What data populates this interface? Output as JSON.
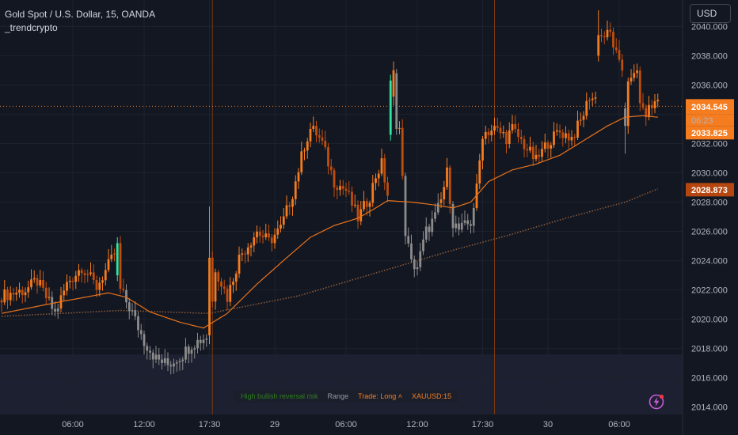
{
  "header": {
    "title": "Gold Spot / U.S. Dollar, 15, OANDA",
    "indicator_name": "_trendcrypto",
    "currency_button": "USD"
  },
  "status_bar": {
    "risk": "High bullish reversal risk",
    "mode": "Range",
    "trade": "Trade: Long ˄",
    "symbol": "XAUUSD:15"
  },
  "price_labels": {
    "last_price": "2034.545",
    "countdown": "06:23",
    "ma_fast": "2033.825",
    "ma_slow": "2028.873"
  },
  "icons": {
    "alert": "lightning-bolt-icon"
  },
  "colors": {
    "background": "#131722",
    "orange": "#f57c1f",
    "dark_orange": "#c04e0c",
    "gray": "#8c8c8c",
    "green": "#2ee6a0",
    "slow_ma": "#8a5a38",
    "text": "#b2b5be",
    "grid": "#1e222d"
  },
  "chart_data": {
    "type": "candlestick",
    "y_ticks": [
      "2040.000",
      "2038.000",
      "2036.000",
      "2034.000",
      "2032.000",
      "2030.000",
      "2028.000",
      "2026.000",
      "2024.000",
      "2022.000",
      "2020.000",
      "2018.000",
      "2016.000",
      "2014.000"
    ],
    "ylim": [
      2013.5,
      2041.8
    ],
    "x_ticks": [
      {
        "label": "06:00",
        "bar": 24
      },
      {
        "label": "12:00",
        "bar": 48
      },
      {
        "label": "17:30",
        "bar": 70
      },
      {
        "label": "29",
        "bar": 92
      },
      {
        "label": "06:00",
        "bar": 116
      },
      {
        "label": "12:00",
        "bar": 140
      },
      {
        "label": "17:30",
        "bar": 162
      },
      {
        "label": "30",
        "bar": 184
      },
      {
        "label": "06:00",
        "bar": 208
      }
    ],
    "session_lines_bar": [
      71,
      166
    ],
    "grid": true,
    "price_line": 2034.545,
    "anchors": [
      [
        0,
        2021.6
      ],
      [
        8,
        2022.0
      ],
      [
        12,
        2022.6
      ],
      [
        18,
        2020.4
      ],
      [
        22,
        2022.4
      ],
      [
        27,
        2023.6
      ],
      [
        32,
        2022.2
      ],
      [
        38,
        2024.4
      ],
      [
        40,
        2022.0
      ],
      [
        44,
        2020.4
      ],
      [
        48,
        2018.5
      ],
      [
        52,
        2017.3
      ],
      [
        56,
        2016.9
      ],
      [
        60,
        2017.4
      ],
      [
        64,
        2018.3
      ],
      [
        70,
        2018.9
      ],
      [
        72,
        2023.5
      ],
      [
        76,
        2021.5
      ],
      [
        80,
        2024.2
      ],
      [
        86,
        2026.0
      ],
      [
        90,
        2025.3
      ],
      [
        94,
        2026.2
      ],
      [
        98,
        2028.6
      ],
      [
        102,
        2031.9
      ],
      [
        104,
        2033.0
      ],
      [
        106,
        2032.7
      ],
      [
        108,
        2032.0
      ],
      [
        112,
        2029.4
      ],
      [
        116,
        2028.8
      ],
      [
        120,
        2026.9
      ],
      [
        124,
        2028.4
      ],
      [
        126,
        2029.8
      ],
      [
        128,
        2030.6
      ],
      [
        130,
        2028.5
      ],
      [
        132,
        2032.4
      ],
      [
        133,
        2036.3
      ],
      [
        134,
        2033.0
      ],
      [
        136,
        2026.0
      ],
      [
        138,
        2023.8
      ],
      [
        140,
        2023.6
      ],
      [
        143,
        2026.0
      ],
      [
        146,
        2027.0
      ],
      [
        148,
        2028.1
      ],
      [
        150,
        2030.0
      ],
      [
        152,
        2026.6
      ],
      [
        154,
        2026.1
      ],
      [
        158,
        2026.6
      ],
      [
        160,
        2028.9
      ],
      [
        162,
        2032.7
      ],
      [
        166,
        2033.0
      ],
      [
        170,
        2032.4
      ],
      [
        172,
        2033.0
      ],
      [
        176,
        2031.9
      ],
      [
        180,
        2030.8
      ],
      [
        184,
        2032.1
      ],
      [
        188,
        2032.8
      ],
      [
        192,
        2032.4
      ],
      [
        195,
        2033.5
      ],
      [
        198,
        2035.2
      ],
      [
        200,
        2035.0
      ],
      [
        202,
        2039.3
      ],
      [
        205,
        2039.5
      ],
      [
        208,
        2037.3
      ],
      [
        210,
        2036.8
      ],
      [
        212,
        2036.2
      ],
      [
        214,
        2036.9
      ],
      [
        215,
        2035.0
      ],
      [
        216,
        2034.0
      ],
      [
        218,
        2034.3
      ],
      [
        221,
        2035.0
      ]
    ],
    "special_candles": [
      {
        "bar": 39,
        "open": 2023.0,
        "close": 2025.2,
        "high": 2025.6,
        "low": 2022.6,
        "color": "green"
      },
      {
        "bar": 131,
        "open": 2032.6,
        "close": 2036.3,
        "high": 2036.7,
        "low": 2032.2,
        "color": "green"
      },
      {
        "bar": 132,
        "open": 2035.2,
        "close": 2037.0,
        "high": 2037.6,
        "low": 2034.6,
        "color": "orange"
      },
      {
        "bar": 133,
        "open": 2036.8,
        "close": 2033.0,
        "high": 2037.1,
        "low": 2032.6,
        "color": "gray"
      },
      {
        "bar": 70,
        "open": 2018.9,
        "close": 2024.2,
        "high": 2027.7,
        "low": 2018.3,
        "color": "orange"
      },
      {
        "bar": 201,
        "open": 2038.0,
        "close": 2039.4,
        "high": 2041.1,
        "low": 2037.6,
        "color": "orange"
      },
      {
        "bar": 210,
        "open": 2034.4,
        "close": 2033.2,
        "high": 2034.8,
        "low": 2031.3,
        "color": "gray"
      }
    ],
    "fast_ma": [
      [
        0,
        2020.4
      ],
      [
        20,
        2021.2
      ],
      [
        36,
        2021.8
      ],
      [
        42,
        2021.5
      ],
      [
        50,
        2020.5
      ],
      [
        60,
        2019.8
      ],
      [
        68,
        2019.4
      ],
      [
        76,
        2020.4
      ],
      [
        86,
        2022.4
      ],
      [
        96,
        2024.2
      ],
      [
        104,
        2025.6
      ],
      [
        112,
        2026.4
      ],
      [
        120,
        2026.9
      ],
      [
        126,
        2027.6
      ],
      [
        130,
        2028.1
      ],
      [
        138,
        2028.0
      ],
      [
        146,
        2027.8
      ],
      [
        152,
        2027.6
      ],
      [
        158,
        2028.0
      ],
      [
        164,
        2029.4
      ],
      [
        172,
        2030.2
      ],
      [
        180,
        2030.6
      ],
      [
        188,
        2031.2
      ],
      [
        196,
        2032.2
      ],
      [
        204,
        2033.2
      ],
      [
        210,
        2033.8
      ],
      [
        216,
        2033.9
      ],
      [
        221,
        2033.8
      ]
    ],
    "slow_ma": [
      [
        0,
        2020.2
      ],
      [
        40,
        2020.6
      ],
      [
        70,
        2020.4
      ],
      [
        100,
        2021.6
      ],
      [
        130,
        2023.4
      ],
      [
        150,
        2024.6
      ],
      [
        170,
        2025.7
      ],
      [
        190,
        2026.9
      ],
      [
        210,
        2028.0
      ],
      [
        221,
        2028.9
      ]
    ]
  }
}
